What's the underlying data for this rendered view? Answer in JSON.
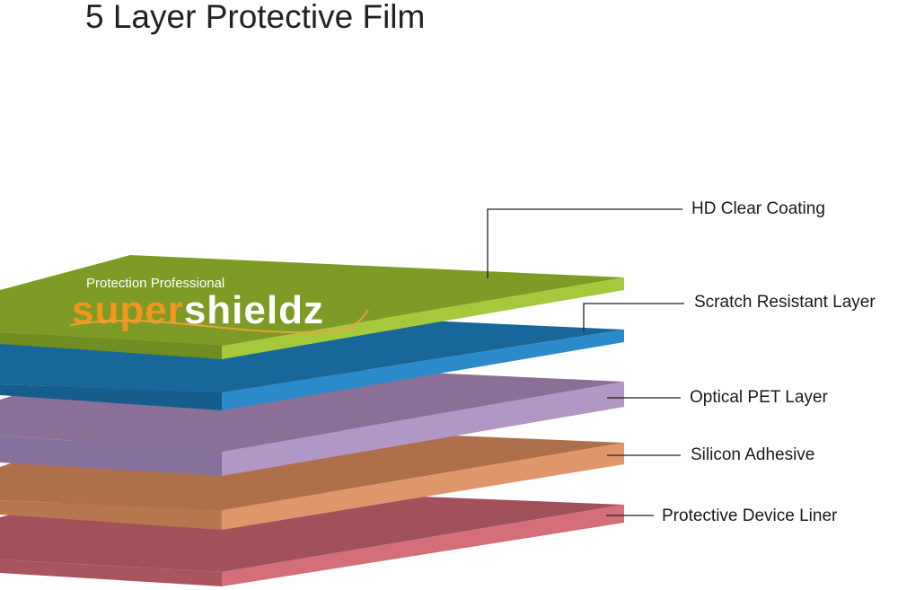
{
  "title": "5 Layer Protective Film",
  "logo": {
    "tagline": "Protection Professional",
    "brand_part1": "super",
    "brand_part2": "shieldz",
    "accent": "#f0961e"
  },
  "layers": [
    {
      "label": "HD Clear Coating",
      "top": "#7d9b25",
      "side": "#a6c93b",
      "front": "#6f8d21"
    },
    {
      "label": "Scratch Resistant Layer",
      "top": "#17679a",
      "side": "#2b8bca",
      "front": "#155d8c"
    },
    {
      "label": "Optical PET Layer",
      "top": "#8a6f97",
      "side": "#b197c5",
      "front": "#86709c"
    },
    {
      "label": "Silicon Adhesive",
      "top": "#ae704b",
      "side": "#e0966b",
      "front": "#b8764f"
    },
    {
      "label": "Protective Device Liner",
      "top": "#a2515b",
      "side": "#d46f79",
      "front": "#a85560"
    }
  ]
}
